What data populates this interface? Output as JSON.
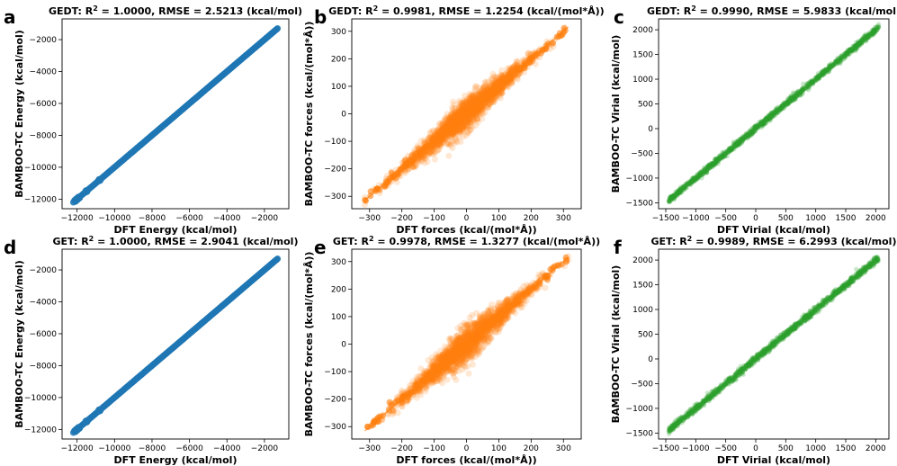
{
  "panels": [
    {
      "letter": "a",
      "title": {
        "prefix": "GEDT: R",
        "sup": "2",
        "suffix": " = 1.0000, RMSE = 2.5213 (kcal/mol)"
      },
      "xlabel": "DFT Energy (kcal/mol)",
      "ylabel": "BAMBOO-TC Energy (kcal/mol)",
      "color": "#1f77b4"
    },
    {
      "letter": "b",
      "title": {
        "prefix": "GEDT: R",
        "sup": "2",
        "suffix": " = 0.9981, RMSE = 1.2254 (kcal/(mol*Å))"
      },
      "xlabel": "DFT forces (kcal/(mol*Å))",
      "ylabel": "BAMBOO-TC forces (kcal/(mol*Å))",
      "color": "#ff7f0e"
    },
    {
      "letter": "c",
      "title": {
        "prefix": "GEDT: R",
        "sup": "2",
        "suffix": " = 0.9990, RMSE = 5.9833 (kcal/mol)"
      },
      "xlabel": "DFT Virial (kcal/mol)",
      "ylabel": "BAMBOO-TC Virial (kcal/mol)",
      "color": "#2ca02c"
    },
    {
      "letter": "d",
      "title": {
        "prefix": "GET: R",
        "sup": "2",
        "suffix": " = 1.0000, RMSE = 2.9041 (kcal/mol)"
      },
      "xlabel": "DFT Energy (kcal/mol)",
      "ylabel": "BAMBOO-TC Energy (kcal/mol)",
      "color": "#1f77b4"
    },
    {
      "letter": "e",
      "title": {
        "prefix": "GET: R",
        "sup": "2",
        "suffix": " = 0.9978, RMSE = 1.3277 (kcal/(mol*Å))"
      },
      "xlabel": "DFT forces (kcal/(mol*Å))",
      "ylabel": "BAMBOO-TC forces (kcal/(mol*Å))",
      "color": "#ff7f0e"
    },
    {
      "letter": "f",
      "title": {
        "prefix": "GET: R",
        "sup": "2",
        "suffix": " = 0.9989, RMSE = 6.2993 (kcal/mol)"
      },
      "xlabel": "DFT Virial (kcal/mol)",
      "ylabel": "BAMBOO-TC Virial (kcal/mol)",
      "color": "#2ca02c"
    }
  ],
  "chart_data": [
    {
      "type": "scatter",
      "panel": "a",
      "x_ticks": [
        -12000,
        -10000,
        -8000,
        -6000,
        -4000,
        -2000
      ],
      "y_ticks": [
        -12000,
        -10000,
        -8000,
        -6000,
        -4000,
        -2000
      ],
      "xlim": [
        -12800,
        -700
      ],
      "ylim": [
        -12600,
        -700
      ],
      "x_range": [
        -12200,
        -1300
      ],
      "y_range": [
        -12200,
        -1300
      ],
      "spread": 0,
      "style": "energy"
    },
    {
      "type": "scatter",
      "panel": "b",
      "x_ticks": [
        -300,
        -200,
        -100,
        0,
        100,
        200,
        300
      ],
      "y_ticks": [
        -300,
        -200,
        -100,
        0,
        100,
        200,
        300
      ],
      "xlim": [
        -355,
        355
      ],
      "ylim": [
        -345,
        345
      ],
      "x_range": [
        -315,
        315
      ],
      "y_range": [
        -315,
        315
      ],
      "spread": 25,
      "style": "forces"
    },
    {
      "type": "scatter",
      "panel": "c",
      "x_ticks": [
        -1500,
        -1000,
        -500,
        0,
        500,
        1000,
        1500,
        2000
      ],
      "y_ticks": [
        -1500,
        -1000,
        -500,
        0,
        500,
        1000,
        1500,
        2000
      ],
      "xlim": [
        -1620,
        2220
      ],
      "ylim": [
        -1620,
        2220
      ],
      "x_range": [
        -1450,
        2050
      ],
      "y_range": [
        -1450,
        2050
      ],
      "spread": 30,
      "style": "virial"
    },
    {
      "type": "scatter",
      "panel": "d",
      "x_ticks": [
        -12000,
        -10000,
        -8000,
        -6000,
        -4000,
        -2000
      ],
      "y_ticks": [
        -12000,
        -10000,
        -8000,
        -6000,
        -4000,
        -2000
      ],
      "xlim": [
        -12800,
        -700
      ],
      "ylim": [
        -12600,
        -700
      ],
      "x_range": [
        -12200,
        -1300
      ],
      "y_range": [
        -12200,
        -1300
      ],
      "spread": 0,
      "style": "energy"
    },
    {
      "type": "scatter",
      "panel": "e",
      "x_ticks": [
        -300,
        -200,
        -100,
        0,
        100,
        200,
        300
      ],
      "y_ticks": [
        -300,
        -200,
        -100,
        0,
        100,
        200,
        300
      ],
      "xlim": [
        -355,
        355
      ],
      "ylim": [
        -345,
        345
      ],
      "x_range": [
        -315,
        315
      ],
      "y_range": [
        -315,
        315
      ],
      "spread": 27,
      "style": "forces"
    },
    {
      "type": "scatter",
      "panel": "f",
      "x_ticks": [
        -1500,
        -1000,
        -500,
        0,
        500,
        1000,
        1500,
        2000
      ],
      "y_ticks": [
        -1500,
        -1000,
        -500,
        0,
        500,
        1000,
        1500,
        2000
      ],
      "xlim": [
        -1620,
        2220
      ],
      "ylim": [
        -1620,
        2220
      ],
      "x_range": [
        -1450,
        2050
      ],
      "y_range": [
        -1450,
        2050
      ],
      "spread": 32,
      "style": "virial"
    }
  ]
}
